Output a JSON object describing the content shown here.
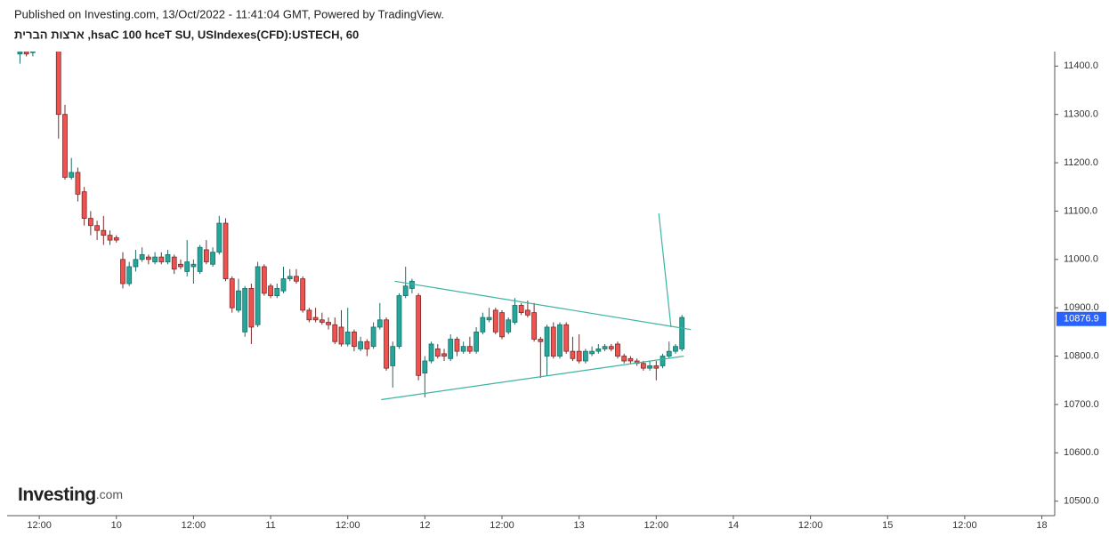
{
  "chart_data": {
    "type": "candlestick",
    "header": "Published on Investing.com, 13/Oct/2022 - 11:41:04 GMT, Powered by TradingView.",
    "title": "ארצות הברית ,hsaC 100 hceT SU, USIndexes(CFD):USTECH, 60",
    "logo": {
      "name": "Investing",
      "suffix": ".com"
    },
    "up_color": "#26a69a",
    "down_color": "#ef5350",
    "x": [
      9,
      10,
      11,
      15,
      16,
      17,
      18,
      19,
      20,
      21,
      22,
      23,
      24,
      25,
      26,
      27,
      28,
      29,
      30,
      31,
      32,
      33,
      34,
      35,
      36,
      37,
      38,
      39,
      40,
      41,
      42,
      43,
      44,
      45,
      46,
      47,
      48,
      49,
      50,
      51,
      52,
      53,
      54,
      55,
      56,
      57,
      58,
      59,
      60,
      61,
      62,
      63,
      64,
      65,
      66,
      67,
      68,
      69,
      70,
      71,
      72,
      73,
      74,
      75,
      76,
      77,
      78,
      79,
      80,
      81,
      82,
      83,
      84,
      85,
      86,
      87,
      88,
      89,
      90,
      91,
      92,
      93,
      94,
      95,
      96,
      97,
      98,
      99,
      100,
      101,
      102,
      103,
      104,
      105,
      106,
      107,
      108,
      109,
      110,
      111,
      112
    ],
    "open": [
      11425,
      11430,
      11428,
      11440,
      11300,
      11170,
      11180,
      11140,
      11085,
      11070,
      11060,
      11050,
      11045,
      11000,
      10950,
      10985,
      11000,
      11005,
      10995,
      11005,
      10995,
      11005,
      10990,
      10975,
      10985,
      10975,
      11020,
      10990,
      11015,
      11075,
      10960,
      10895,
      10850,
      10940,
      10865,
      10985,
      10945,
      10925,
      10935,
      10960,
      10965,
      10960,
      10895,
      10880,
      10875,
      10870,
      10865,
      10860,
      10825,
      10850,
      10815,
      10830,
      10820,
      10860,
      10875,
      10780,
      10820,
      10925,
      10940,
      10925,
      10765,
      10790,
      10815,
      10805,
      10795,
      10835,
      10810,
      10820,
      10810,
      10850,
      10875,
      10895,
      10890,
      10850,
      10870,
      10905,
      10895,
      10890,
      10835,
      10800,
      10860,
      10800,
      10865,
      10810,
      10810,
      10790,
      10805,
      10810,
      10815,
      10820,
      10825,
      10800,
      10795,
      10790,
      10785,
      10775,
      10780,
      10780,
      10800,
      10810,
      10815
    ],
    "high": [
      11435,
      11435,
      11435,
      11450,
      11320,
      11210,
      11190,
      11150,
      11100,
      11080,
      11090,
      11060,
      11050,
      11015,
      10995,
      11020,
      11025,
      11010,
      11015,
      11015,
      11020,
      11010,
      11000,
      11040,
      11000,
      11030,
      11040,
      11025,
      11090,
      11085,
      10965,
      10960,
      10945,
      10950,
      10995,
      10990,
      10950,
      10950,
      10985,
      10980,
      10980,
      10965,
      10900,
      10900,
      10890,
      10880,
      10880,
      10895,
      10900,
      10855,
      10840,
      10835,
      10870,
      10910,
      10880,
      10830,
      10930,
      10985,
      10960,
      10930,
      10800,
      10830,
      10825,
      10815,
      10845,
      10840,
      10830,
      10840,
      10860,
      10890,
      10900,
      10900,
      10895,
      10880,
      10920,
      10910,
      10915,
      10910,
      10840,
      10865,
      10870,
      10870,
      10870,
      10840,
      10845,
      10815,
      10820,
      10825,
      10825,
      10825,
      10830,
      10805,
      10800,
      10795,
      10790,
      10790,
      10790,
      10805,
      10830,
      10825,
      10885
    ],
    "low": [
      11405,
      11420,
      11420,
      11250,
      11165,
      11165,
      11120,
      11070,
      11050,
      11040,
      11030,
      11030,
      11035,
      10940,
      10945,
      10975,
      10995,
      10990,
      10990,
      10990,
      10990,
      10970,
      10980,
      10965,
      10950,
      10970,
      10990,
      10985,
      11010,
      10955,
      10890,
      10890,
      10840,
      10825,
      10860,
      10925,
      10920,
      10920,
      10930,
      10955,
      10950,
      10890,
      10870,
      10870,
      10865,
      10855,
      10825,
      10820,
      10820,
      10810,
      10810,
      10800,
      10815,
      10855,
      10770,
      10735,
      10815,
      10920,
      10930,
      10750,
      10715,
      10785,
      10795,
      10790,
      10790,
      10800,
      10805,
      10805,
      10805,
      10845,
      10870,
      10845,
      10835,
      10845,
      10865,
      10885,
      10880,
      10830,
      10755,
      10760,
      10795,
      10795,
      10805,
      10790,
      10785,
      10785,
      10800,
      10805,
      10810,
      10810,
      10795,
      10785,
      10785,
      10780,
      10770,
      10770,
      10750,
      10775,
      10795,
      10805,
      10810
    ],
    "close": [
      11430,
      11425,
      11430,
      11300,
      11170,
      11180,
      11135,
      11085,
      11070,
      11060,
      11050,
      11040,
      11040,
      10950,
      10985,
      11000,
      11010,
      11000,
      11005,
      10995,
      11010,
      10980,
      10985,
      10995,
      10990,
      11025,
      10995,
      11015,
      11075,
      10960,
      10900,
      10935,
      10940,
      10860,
      10985,
      10930,
      10925,
      10940,
      10960,
      10965,
      10955,
      10895,
      10875,
      10875,
      10870,
      10865,
      10830,
      10825,
      10850,
      10820,
      10830,
      10815,
      10860,
      10875,
      10775,
      10820,
      10925,
      10945,
      10955,
      10760,
      10790,
      10825,
      10800,
      10800,
      10835,
      10810,
      10820,
      10810,
      10850,
      10880,
      10880,
      10850,
      10840,
      10875,
      10905,
      10890,
      10885,
      10835,
      10830,
      10860,
      10800,
      10865,
      10810,
      10795,
      10790,
      10810,
      10810,
      10815,
      10820,
      10815,
      10800,
      10790,
      10790,
      10785,
      10775,
      10780,
      10775,
      10800,
      10810,
      10820,
      10880
    ],
    "trendline_color": "#3bb5a0",
    "trendlines": [
      {
        "x": [
          67.3,
          113.4
        ],
        "values": [
          10955,
          10855
        ]
      },
      {
        "x": [
          65.2,
          112.3
        ],
        "values": [
          10710,
          10800
        ]
      },
      {
        "x": [
          108.4,
          110.3
        ],
        "values": [
          11095,
          10860
        ]
      }
    ],
    "last_price": 10876.9,
    "last_price_color": "#2962ff",
    "xlim": [
      7,
      170
    ],
    "xticks": [
      {
        "value": 12,
        "label": "12:00"
      },
      {
        "value": 24,
        "label": "10"
      },
      {
        "value": 36,
        "label": "12:00"
      },
      {
        "value": 48,
        "label": "11"
      },
      {
        "value": 60,
        "label": "12:00"
      },
      {
        "value": 72,
        "label": "12"
      },
      {
        "value": 84,
        "label": "12:00"
      },
      {
        "value": 96,
        "label": "13"
      },
      {
        "value": 108,
        "label": "12:00"
      },
      {
        "value": 120,
        "label": "14"
      },
      {
        "value": 132,
        "label": "12:00"
      },
      {
        "value": 144,
        "label": "15"
      },
      {
        "value": 156,
        "label": "12:00"
      },
      {
        "value": 168,
        "label": "18"
      }
    ],
    "ylim": [
      10470,
      11430
    ],
    "yticks": [
      {
        "value": 10500,
        "label": "10500.0"
      },
      {
        "value": 10600,
        "label": "10600.0"
      },
      {
        "value": 10700,
        "label": "10700.0"
      },
      {
        "value": 10800,
        "label": "10800.0"
      },
      {
        "value": 10900,
        "label": "10900.0"
      },
      {
        "value": 11000,
        "label": "11000.0"
      },
      {
        "value": 11100,
        "label": "11100.0"
      },
      {
        "value": 11200,
        "label": "11200.0"
      },
      {
        "value": 11300,
        "label": "11300.0"
      },
      {
        "value": 11400,
        "label": "11400.0"
      }
    ]
  }
}
